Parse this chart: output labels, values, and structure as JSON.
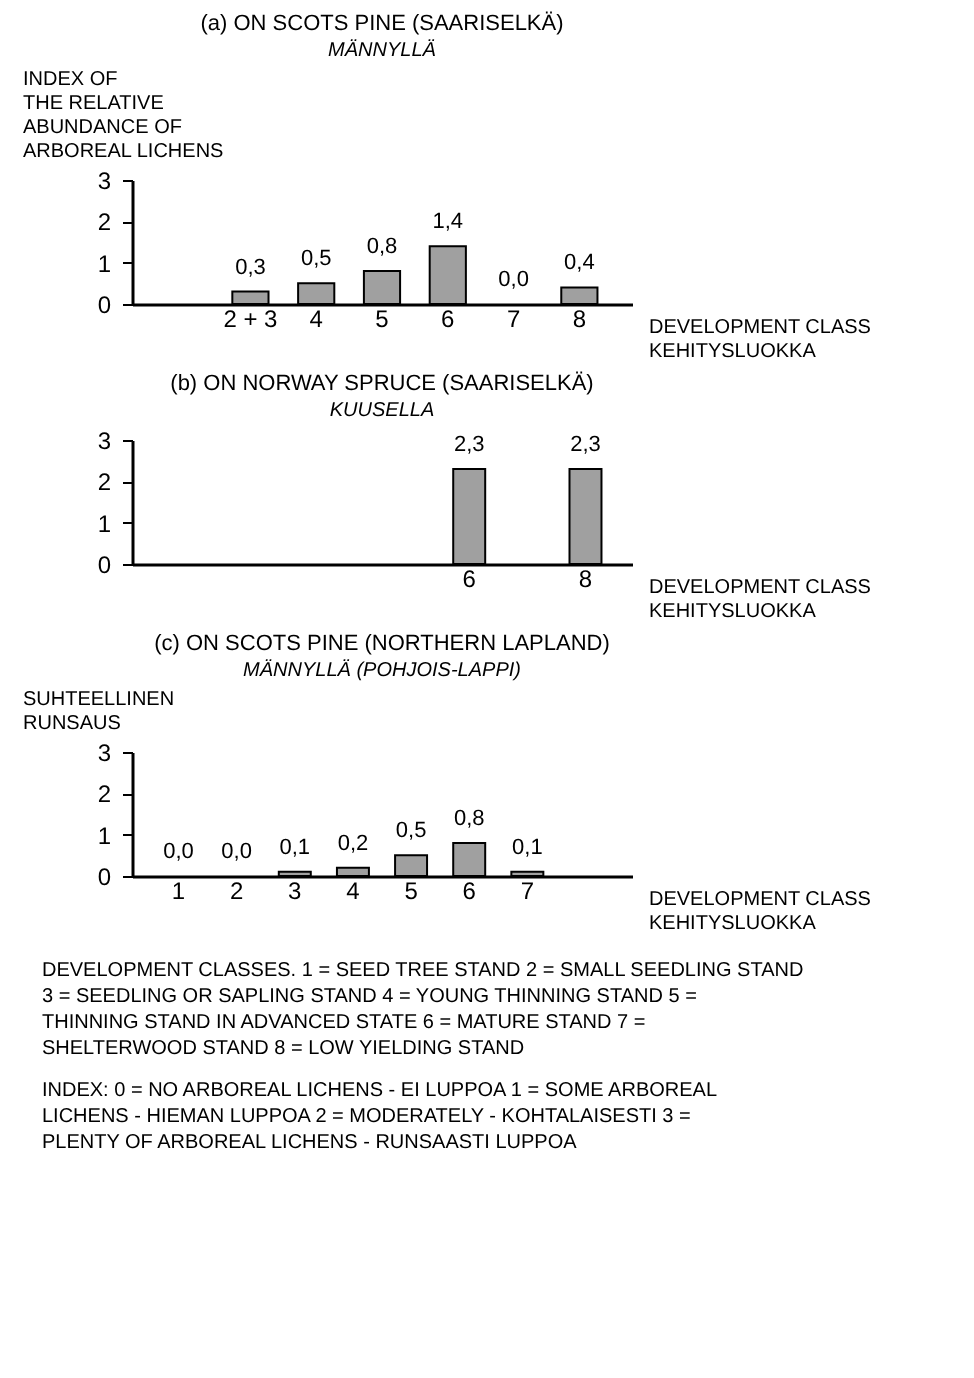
{
  "chart_data": [
    {
      "type": "bar",
      "title": "(a) ON SCOTS PINE (SAARISELKÄ)",
      "subtitle": "MÄNNYLLÄ",
      "ylabel": "INDEX OF\nTHE RELATIVE\nABUNDANCE OF\nARBOREAL LICHENS",
      "xlabel": "DEVELOPMENT CLASS\nKEHITYSLUOKKA",
      "categories": [
        null,
        "2 + 3",
        "4",
        "5",
        "6",
        "7",
        "8"
      ],
      "values": [
        null,
        0.3,
        0.5,
        0.8,
        1.4,
        0.0,
        0.4
      ],
      "value_labels": [
        null,
        "0,3",
        "0,5",
        "0,8",
        "1,4",
        "0,0",
        "0,4"
      ],
      "color": "#a0a0a0",
      "ylim": [
        0,
        3
      ],
      "yticks": [
        0,
        1,
        2,
        3
      ]
    },
    {
      "type": "bar",
      "title": "(b) ON NORWAY SPRUCE (SAARISELKÄ)",
      "subtitle": "KUUSELLA",
      "xlabel": "DEVELOPMENT CLASS\nKEHITYSLUOKKA",
      "categories": [
        null,
        null,
        null,
        null,
        null,
        "6",
        null,
        "8"
      ],
      "values": [
        null,
        null,
        null,
        null,
        null,
        2.3,
        null,
        2.3
      ],
      "value_labels": [
        null,
        null,
        null,
        null,
        null,
        "2,3",
        null,
        "2,3"
      ],
      "color": "#a0a0a0",
      "ylim": [
        0,
        3
      ],
      "yticks": [
        0,
        1,
        2,
        3
      ]
    },
    {
      "type": "bar",
      "title": "(c) ON SCOTS PINE  (NORTHERN LAPLAND)",
      "subtitle": "MÄNNYLLÄ  (POHJOIS-LAPPI)",
      "ylabel": "SUHTEELLINEN\nRUNSAUS",
      "xlabel": "DEVELOPMENT CLASS\nKEHITYSLUOKKA",
      "categories": [
        "1",
        "2",
        "3",
        "4",
        "5",
        "6",
        "7",
        null
      ],
      "values": [
        0.0,
        0.0,
        0.1,
        0.2,
        0.5,
        0.8,
        0.1,
        null
      ],
      "value_labels": [
        "0,0",
        "0,0",
        "0,1",
        "0,2",
        "0,5",
        "0,8",
        "0,1",
        null
      ],
      "color": "#a0a0a0",
      "ylim": [
        0,
        3
      ],
      "yticks": [
        0,
        1,
        2,
        3
      ],
      "annotations": [
        "DEVELOPMENT CLASSES. 1 = SEED TREE STAND  2 = SMALL SEEDLING STAND  3 = SEEDLING OR SAPLING STAND 4 = YOUNG THINNING STAND  5 = THINNING STAND IN ADVANCED STATE  6 = MATURE STAND  7 = SHELTERWOOD STAND  8 = LOW YIELDING STAND",
        "INDEX: 0 = NO ARBOREAL LICHENS - EI LUPPOA  1 = SOME ARBOREAL LICHENS - HIEMAN LUPPOA  2 = MODERATELY - KOHTALAISESTI  3 = PLENTY OF ARBOREAL LICHENS - RUNSAASTI LUPPOA"
      ]
    }
  ]
}
